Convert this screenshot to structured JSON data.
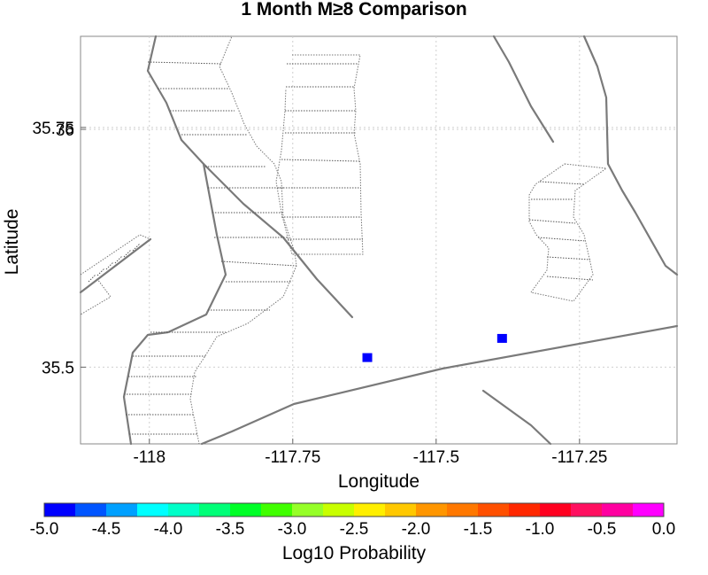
{
  "chart_data": {
    "type": "scatter",
    "title": "1 Month M≥8 Comparison",
    "xlabel": "Longitude",
    "ylabel": "Latitude",
    "xlim": [
      -118.12,
      -117.08
    ],
    "ylim": [
      35.42,
      35.845
    ],
    "xticks": [
      -118,
      -117.75,
      -117.5,
      -117.25
    ],
    "xtick_labels": [
      "-118",
      "-117.75",
      "-117.5",
      "-117.25"
    ],
    "yticks": [
      35.5,
      35.75
    ],
    "ytick_labels": [
      "35.5",
      "35.75"
    ],
    "yticks_extra": [
      36
    ],
    "yticks_extra_labels": [
      "36"
    ],
    "grid": true,
    "points": [
      {
        "lon": -117.62,
        "lat": 35.51,
        "log10_probability": -5.0,
        "color": "#0000ff"
      },
      {
        "lon": -117.385,
        "lat": 35.53,
        "log10_probability": -5.0,
        "color": "#0000ff"
      }
    ],
    "colorbar": {
      "label": "Log10 Probability",
      "range": [
        -5.0,
        0.0
      ],
      "tick_labels": [
        "-5.0",
        "-4.5",
        "-4.0",
        "-3.5",
        "-3.0",
        "-2.5",
        "-2.0",
        "-1.5",
        "-1.0",
        "-0.5",
        "0.0"
      ],
      "colors": [
        "#0000ff",
        "#0055ff",
        "#00a0ff",
        "#00ffff",
        "#00ffc8",
        "#00ff78",
        "#00ff28",
        "#40ff00",
        "#96ff28",
        "#c8ff00",
        "#ffef00",
        "#ffc800",
        "#ff9600",
        "#ff7800",
        "#ff5000",
        "#ff2800",
        "#ff0020",
        "#ff1060",
        "#ff00a0",
        "#ff00ff"
      ]
    }
  }
}
